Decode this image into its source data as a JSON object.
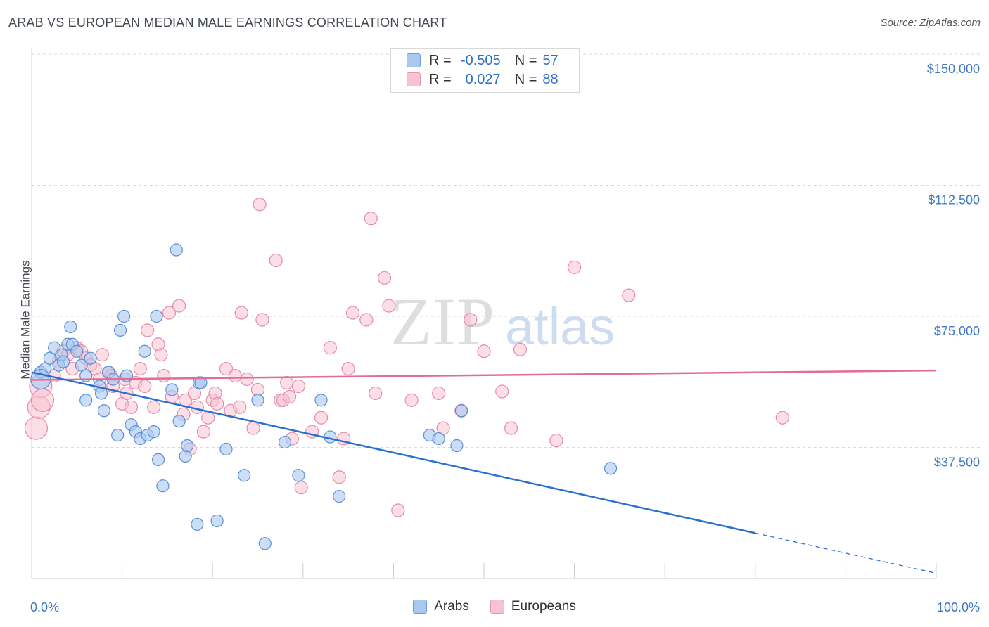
{
  "title": "ARAB VS EUROPEAN MEDIAN MALE EARNINGS CORRELATION CHART",
  "source": "Source: ZipAtlas.com",
  "watermark": {
    "zip": "ZIP",
    "atlas": "atlas"
  },
  "legend": {
    "r_label": "R =",
    "n_label": "N =",
    "rows": [
      {
        "r": "-0.505",
        "n": "57",
        "color": "#a9c8f0",
        "border": "#6b9ee0"
      },
      {
        "r": "0.027",
        "n": "88",
        "color": "#f7c3d2",
        "border": "#e894ae"
      }
    ]
  },
  "bottom_legend": [
    "Arabs",
    "Europeans"
  ],
  "colors": {
    "arabs_fill": "#a9c8f0",
    "arabs_stroke": "#5b8fd8",
    "arabs_line": "#2b6fd1",
    "europeans_fill": "#f7c3d2",
    "europeans_stroke": "#e88aa8",
    "europeans_line": "#e36b94",
    "tick": "#3f78c4",
    "grid": "#d9d9d9"
  },
  "chart_data": {
    "type": "scatter",
    "title": "ARAB VS EUROPEAN MEDIAN MALE EARNINGS CORRELATION CHART",
    "xlabel": "",
    "ylabel": "Median Male Earnings",
    "xlim": [
      0,
      100
    ],
    "ylim": [
      0,
      155000
    ],
    "x_tick_labels": [
      "0.0%",
      "100.0%"
    ],
    "y_ticks": [
      37500,
      75000,
      112500,
      150000
    ],
    "y_tick_labels": [
      "$37,500",
      "$75,000",
      "$112,500",
      "$150,000"
    ],
    "grid": "horizontal dashed",
    "legend_position": "top-center",
    "series": [
      {
        "name": "Arabs",
        "R": -0.505,
        "N": 57,
        "trend": {
          "x": [
            0,
            80,
            100
          ],
          "y": [
            59000,
            13000,
            1500
          ],
          "solid_until_x": 80
        },
        "points": [
          [
            1,
            59000
          ],
          [
            1.5,
            60000
          ],
          [
            1,
            57000
          ],
          [
            2,
            63000
          ],
          [
            2.5,
            66000
          ],
          [
            3,
            61000
          ],
          [
            3.3,
            64000
          ],
          [
            3.5,
            62000
          ],
          [
            4,
            67000
          ],
          [
            4.5,
            67000
          ],
          [
            5,
            65000
          ],
          [
            4.3,
            72000
          ],
          [
            5.5,
            61000
          ],
          [
            6,
            58000
          ],
          [
            6.5,
            63000
          ],
          [
            6,
            51000
          ],
          [
            7.5,
            55000
          ],
          [
            7.7,
            53000
          ],
          [
            8,
            48000
          ],
          [
            8.5,
            59000
          ],
          [
            9,
            57000
          ],
          [
            9.5,
            41000
          ],
          [
            9.8,
            71000
          ],
          [
            10.2,
            75000
          ],
          [
            10.5,
            58000
          ],
          [
            11,
            44000
          ],
          [
            11.5,
            42000
          ],
          [
            12,
            40000
          ],
          [
            12.5,
            65000
          ],
          [
            12.8,
            41000
          ],
          [
            13.5,
            42000
          ],
          [
            13.8,
            75000
          ],
          [
            14,
            34000
          ],
          [
            14.5,
            26500
          ],
          [
            16,
            94000
          ],
          [
            15.5,
            54000
          ],
          [
            16.3,
            45000
          ],
          [
            17,
            35000
          ],
          [
            17.2,
            38000
          ],
          [
            18.5,
            56000
          ],
          [
            18.7,
            56000
          ],
          [
            18.3,
            15500
          ],
          [
            20.5,
            16500
          ],
          [
            21.5,
            37000
          ],
          [
            23.5,
            29500
          ],
          [
            25,
            51000
          ],
          [
            25.8,
            10000
          ],
          [
            28,
            39000
          ],
          [
            29.5,
            29500
          ],
          [
            32,
            51000
          ],
          [
            33,
            40500
          ],
          [
            34,
            23500
          ],
          [
            44,
            41000
          ],
          [
            45,
            40000
          ],
          [
            47,
            38000
          ],
          [
            47.5,
            48000
          ],
          [
            64,
            31500
          ]
        ]
      },
      {
        "name": "Europeans",
        "R": 0.027,
        "N": 88,
        "trend": {
          "x": [
            0,
            100
          ],
          "y": [
            56800,
            59500
          ]
        },
        "points": [
          [
            0.5,
            43000
          ],
          [
            0.8,
            49000
          ],
          [
            1,
            55000
          ],
          [
            1.2,
            51000
          ],
          [
            2.5,
            58000
          ],
          [
            3,
            62000
          ],
          [
            3.5,
            65000
          ],
          [
            4,
            64000
          ],
          [
            4.5,
            60000
          ],
          [
            5,
            66000
          ],
          [
            5.5,
            65000
          ],
          [
            6,
            63000
          ],
          [
            6.5,
            61000
          ],
          [
            7,
            60000
          ],
          [
            7.5,
            57000
          ],
          [
            7.8,
            64000
          ],
          [
            8.5,
            59000
          ],
          [
            8.8,
            58000
          ],
          [
            9,
            55000
          ],
          [
            10,
            50000
          ],
          [
            10.3,
            57000
          ],
          [
            10.5,
            53000
          ],
          [
            11,
            49000
          ],
          [
            11.5,
            56000
          ],
          [
            12,
            60000
          ],
          [
            12.5,
            55000
          ],
          [
            12.8,
            71000
          ],
          [
            13.5,
            49000
          ],
          [
            14,
            67000
          ],
          [
            14.3,
            64000
          ],
          [
            14.6,
            58000
          ],
          [
            15.2,
            76000
          ],
          [
            15.5,
            52000
          ],
          [
            16.3,
            78000
          ],
          [
            16.8,
            47000
          ],
          [
            17,
            51000
          ],
          [
            17.5,
            37000
          ],
          [
            18,
            53000
          ],
          [
            18.3,
            49000
          ],
          [
            19,
            42000
          ],
          [
            19.5,
            46000
          ],
          [
            20,
            51000
          ],
          [
            20.3,
            53000
          ],
          [
            20.5,
            50000
          ],
          [
            21.5,
            60000
          ],
          [
            22,
            48000
          ],
          [
            22.5,
            58000
          ],
          [
            23,
            49000
          ],
          [
            23.2,
            76000
          ],
          [
            23.8,
            57000
          ],
          [
            24.5,
            43000
          ],
          [
            25,
            54000
          ],
          [
            25.5,
            74000
          ],
          [
            25.2,
            107000
          ],
          [
            27,
            91000
          ],
          [
            27.5,
            51000
          ],
          [
            27.8,
            51000
          ],
          [
            28.2,
            56000
          ],
          [
            28.5,
            52000
          ],
          [
            28.8,
            40000
          ],
          [
            29.5,
            55000
          ],
          [
            29.8,
            26000
          ],
          [
            31,
            42000
          ],
          [
            32,
            46000
          ],
          [
            33,
            66000
          ],
          [
            34,
            29000
          ],
          [
            34.5,
            40000
          ],
          [
            35,
            60000
          ],
          [
            35.5,
            76000
          ],
          [
            37,
            74000
          ],
          [
            37.5,
            103000
          ],
          [
            38,
            53000
          ],
          [
            39,
            86000
          ],
          [
            39.5,
            78000
          ],
          [
            40.5,
            19500
          ],
          [
            42,
            51000
          ],
          [
            45,
            53000
          ],
          [
            45.5,
            43000
          ],
          [
            47.5,
            48000
          ],
          [
            48.5,
            74000
          ],
          [
            50,
            65000
          ],
          [
            52,
            53500
          ],
          [
            53,
            43000
          ],
          [
            54,
            65500
          ],
          [
            58,
            39500
          ],
          [
            60,
            89000
          ],
          [
            66,
            81000
          ],
          [
            83,
            46000
          ]
        ]
      }
    ]
  }
}
